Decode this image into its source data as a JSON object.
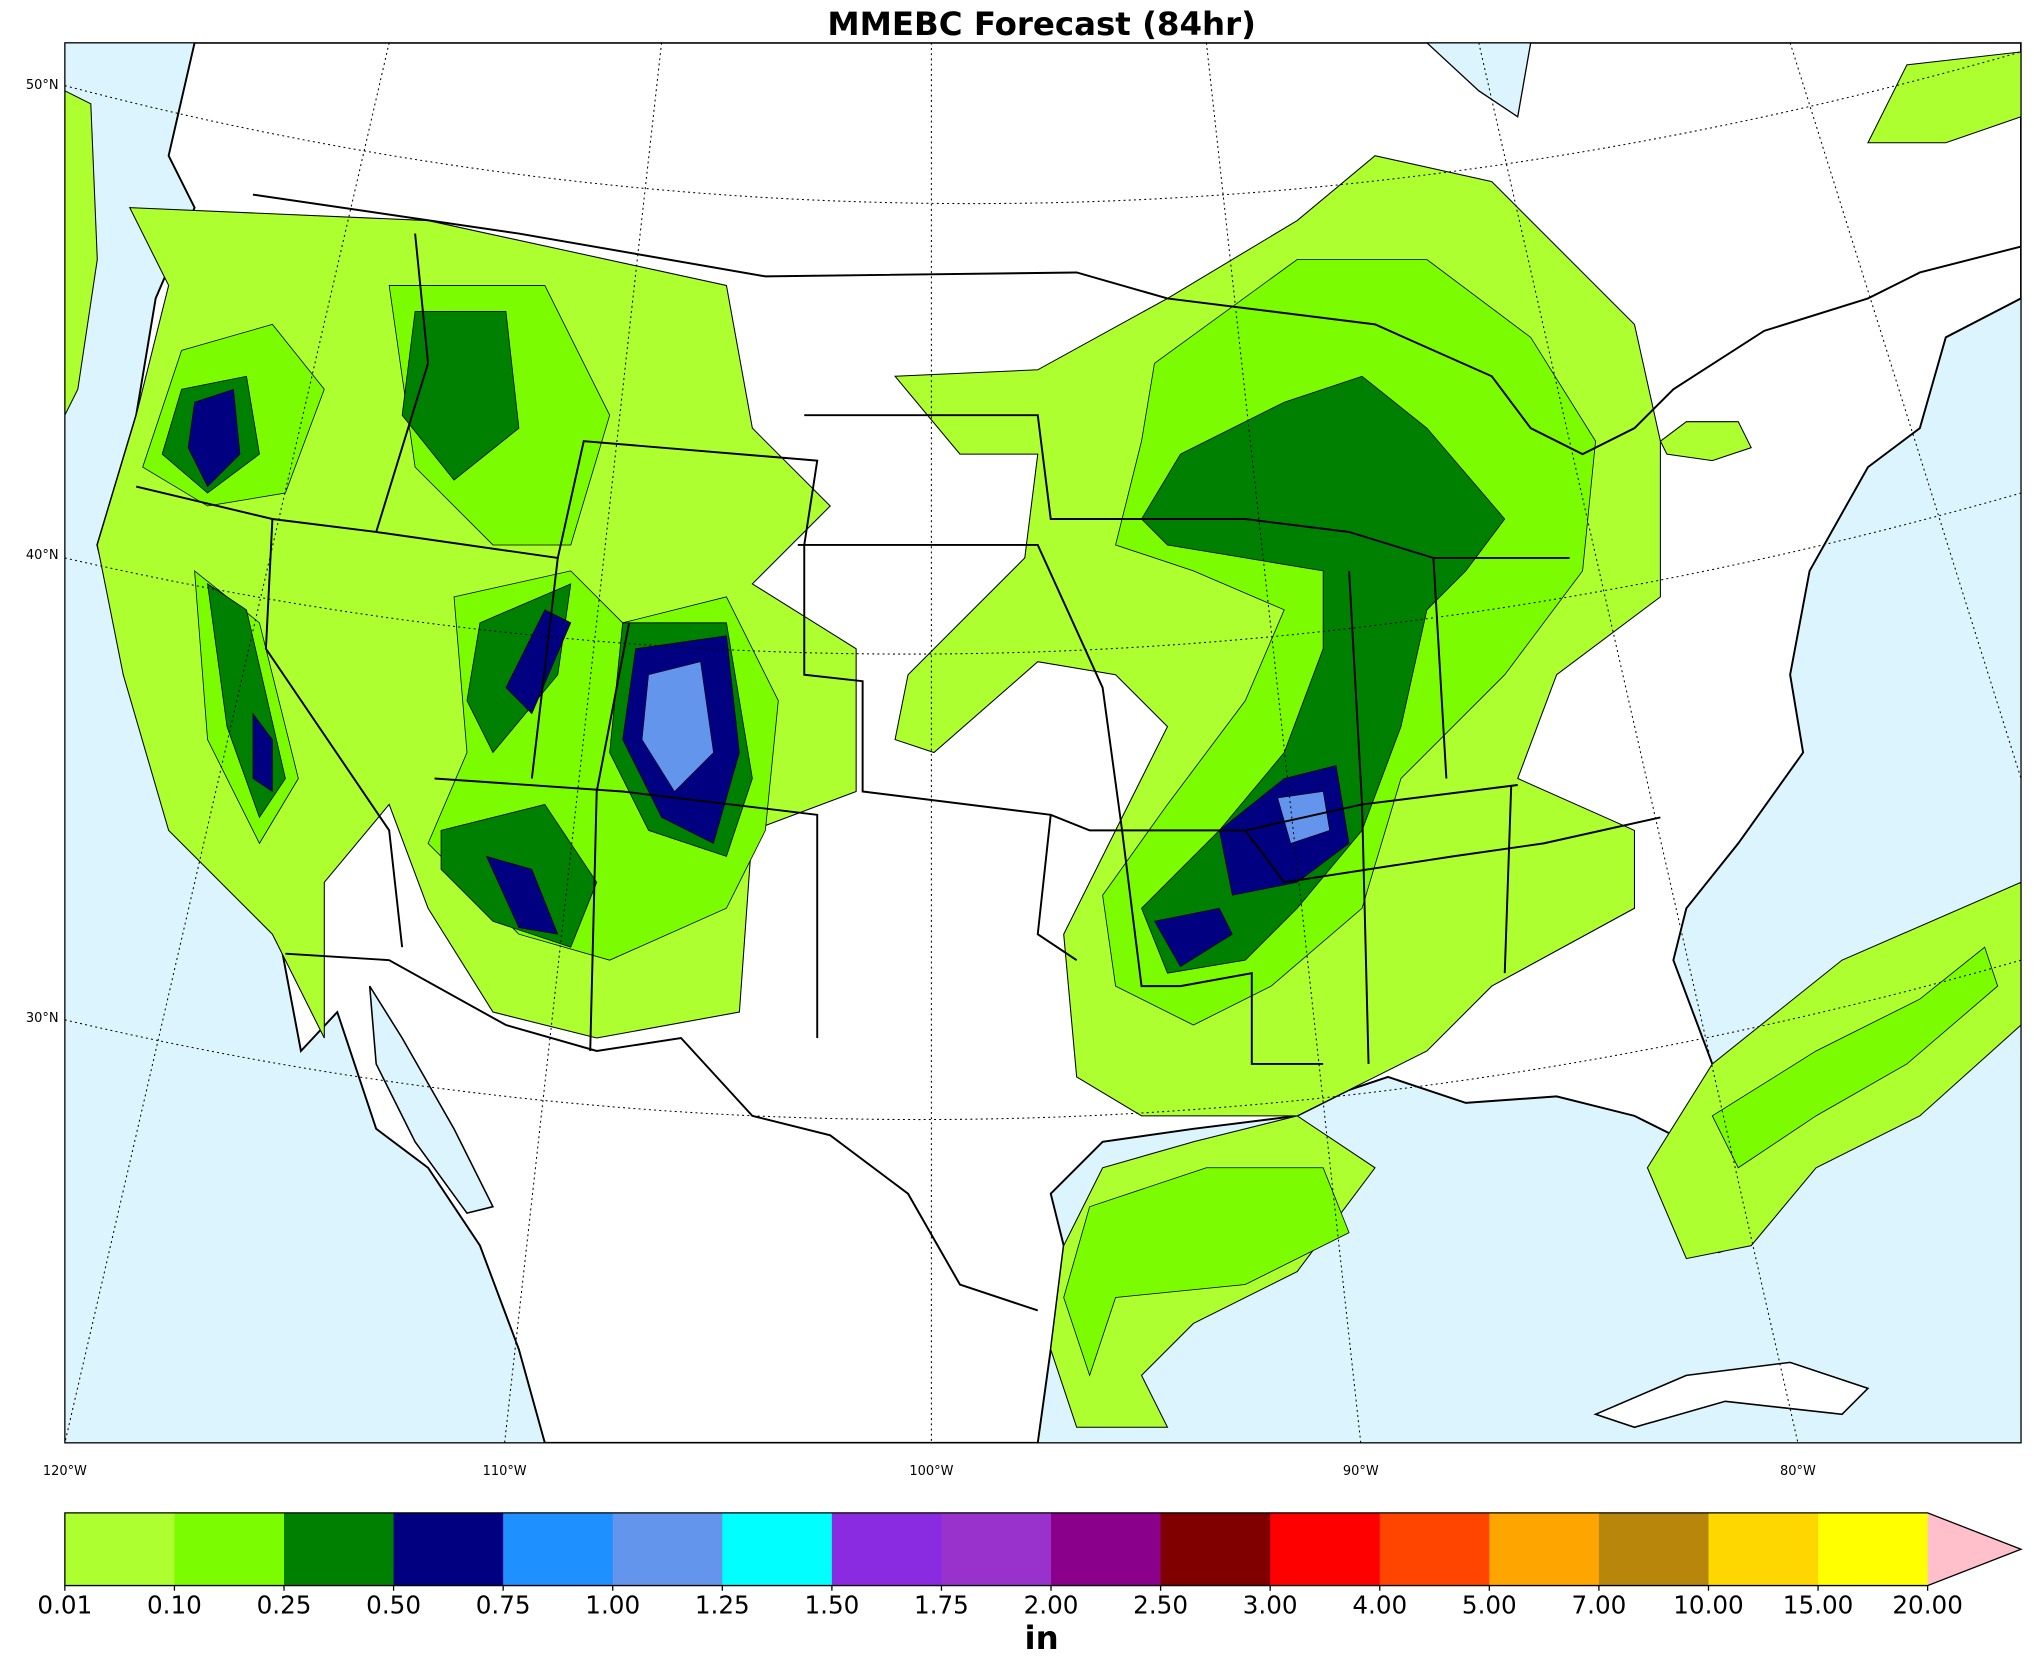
{
  "title": "MMEBC Forecast (84hr)",
  "latitude_labels": [
    "50°N",
    "40°N",
    "30°N"
  ],
  "longitude_labels": [
    "120°W",
    "110°W",
    "100°W",
    "90°W",
    "80°W"
  ],
  "colorbar": {
    "levels": [
      "0.01",
      "0.10",
      "0.25",
      "0.50",
      "0.75",
      "1.00",
      "1.25",
      "1.50",
      "1.75",
      "2.00",
      "2.50",
      "3.00",
      "4.00",
      "5.00",
      "7.00",
      "10.00",
      "15.00",
      "20.00"
    ],
    "colors": [
      "#adff2f",
      "#7cfc00",
      "#008000",
      "#000080",
      "#1e90ff",
      "#6495ed",
      "#00ffff",
      "#8a2be2",
      "#9932cc",
      "#8b008b",
      "#800000",
      "#ff0000",
      "#ff4500",
      "#ffa500",
      "#b8860b",
      "#ffd700",
      "#ffff00"
    ],
    "over_color": "#ffc0cb",
    "unit": "in"
  }
}
